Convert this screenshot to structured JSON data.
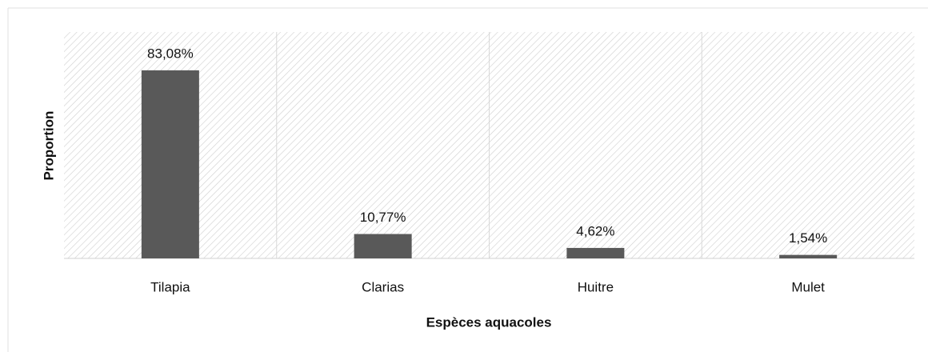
{
  "chart_data": {
    "type": "bar",
    "x_label": "Espèces aquacoles",
    "y_label": "Proportion",
    "categories": [
      "Tilapia",
      "Clarias",
      "Huitre",
      "Mulet"
    ],
    "values": [
      83.08,
      10.77,
      4.62,
      1.54
    ],
    "value_labels": [
      "83,08%",
      "10,77%",
      "4,62%",
      "1,54%"
    ],
    "color": "#595959",
    "ylim": [
      0,
      100
    ]
  }
}
